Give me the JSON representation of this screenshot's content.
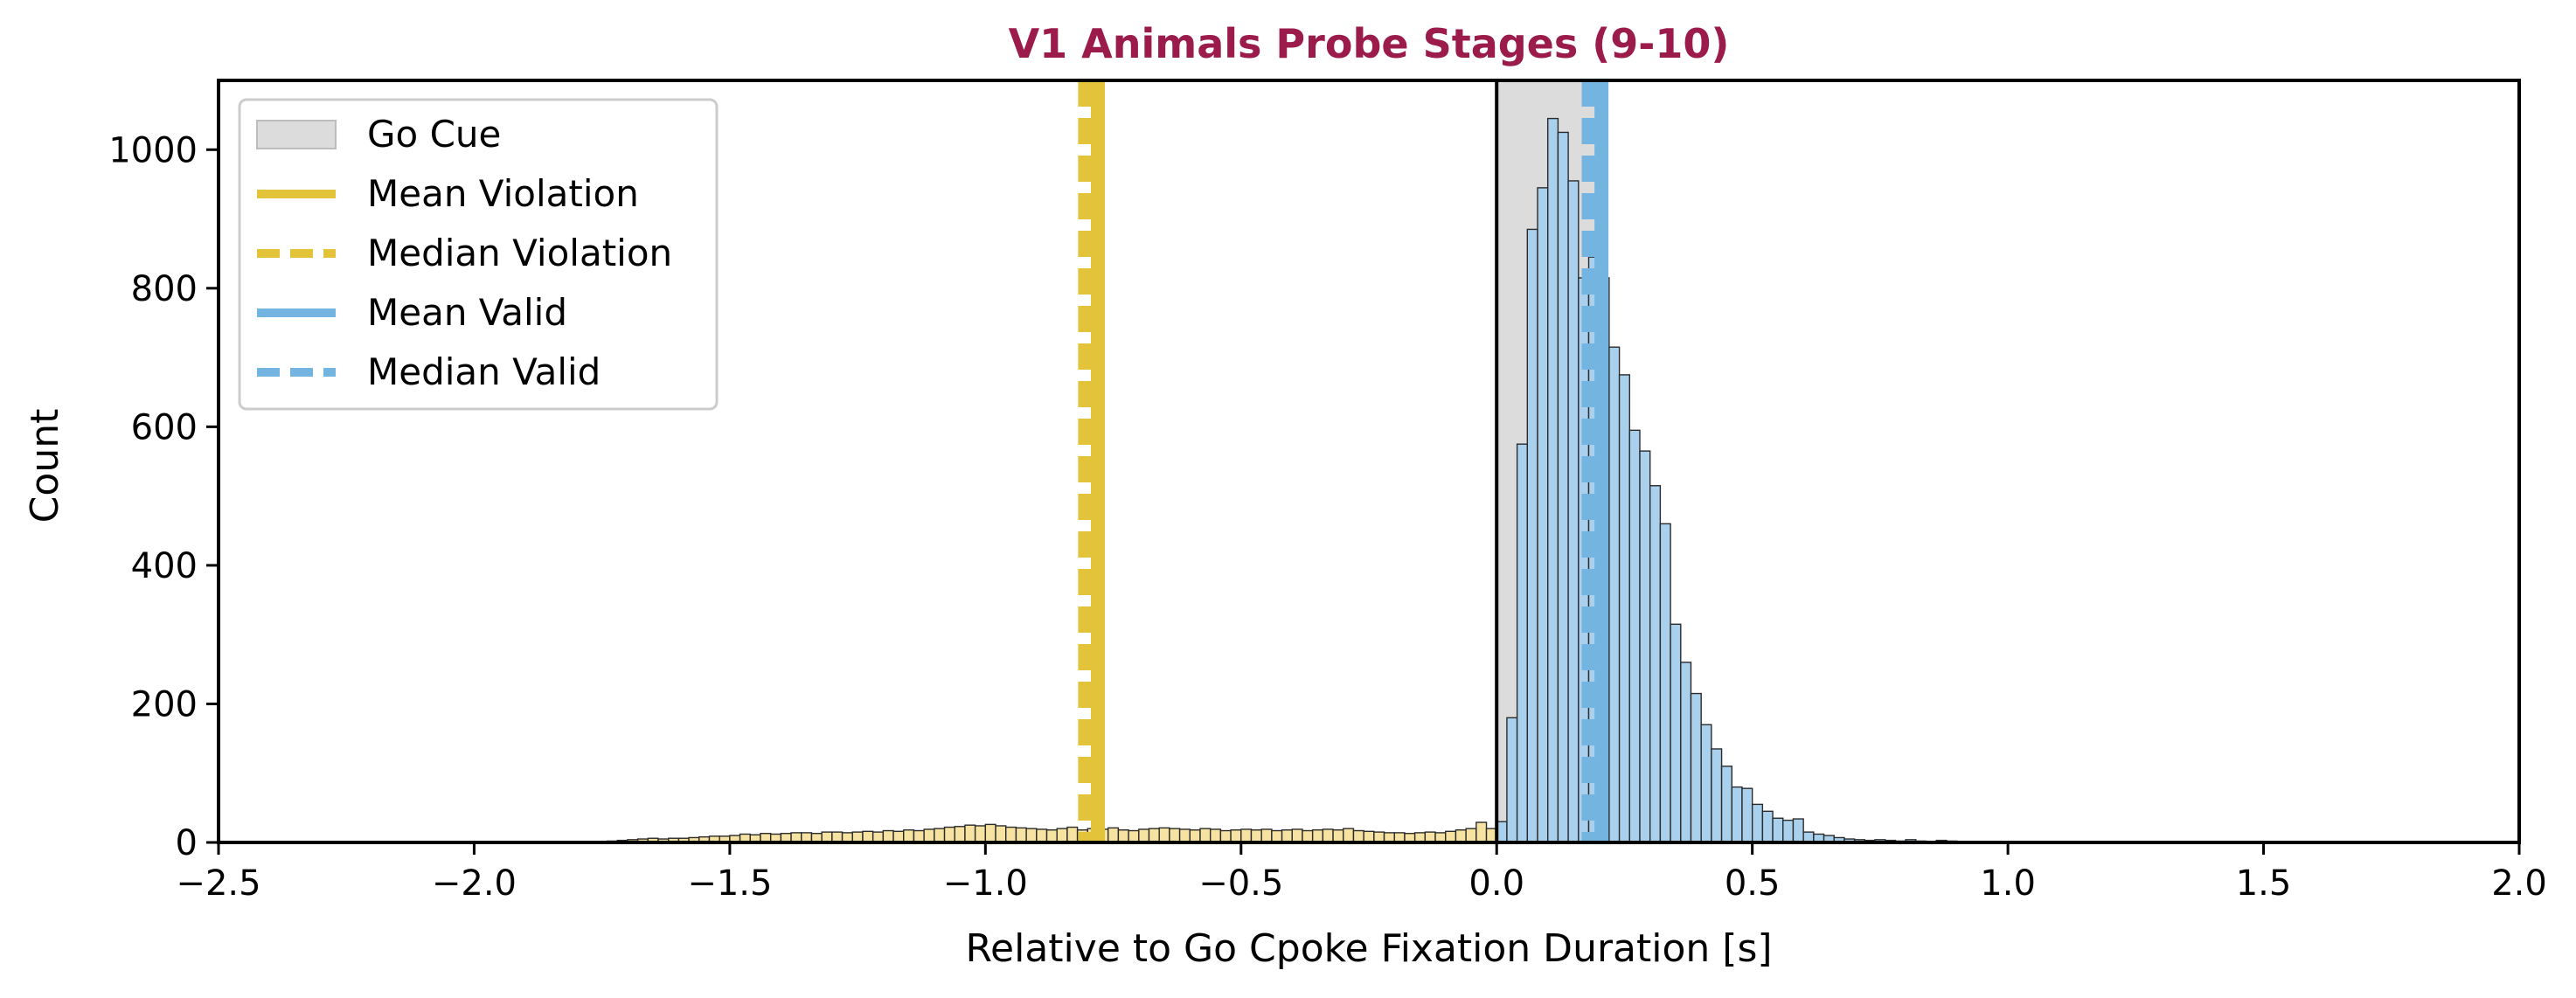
{
  "chart_data": {
    "type": "bar",
    "title": "V1 Animals Probe Stages (9-10)",
    "xlabel": "Relative to Go Cpoke Fixation Duration [s]",
    "ylabel": "Count",
    "xlim": [
      -2.5,
      2.0
    ],
    "ylim": [
      0,
      1100
    ],
    "xticks": [
      -2.5,
      -2.0,
      -1.5,
      -1.0,
      -0.5,
      0.0,
      0.5,
      1.0,
      1.5,
      2.0
    ],
    "xtick_labels": [
      "−2.5",
      "−2.0",
      "−1.5",
      "−1.0",
      "−0.5",
      "0.0",
      "0.5",
      "1.0",
      "1.5",
      "2.0"
    ],
    "yticks": [
      0,
      200,
      400,
      600,
      800,
      1000
    ],
    "ytick_labels": [
      "0",
      "200",
      "400",
      "600",
      "800",
      "1000"
    ],
    "grid": false,
    "legend_position": "top-left",
    "title_color": "#9b1b4b",
    "legend": [
      {
        "label": "Go Cue",
        "kind": "patch",
        "color": "#dcdcdc"
      },
      {
        "label": "Mean Violation",
        "kind": "solid",
        "color": "#e3c33a"
      },
      {
        "label": "Median Violation",
        "kind": "dashed",
        "color": "#e3c33a"
      },
      {
        "label": "Mean Valid",
        "kind": "solid",
        "color": "#74b4e0"
      },
      {
        "label": "Median Valid",
        "kind": "dashed",
        "color": "#74b4e0"
      }
    ],
    "go_cue_region": {
      "x_start": 0.0,
      "x_end": 0.2,
      "color": "#dcdcdc"
    },
    "zero_line": {
      "x": 0.0,
      "color": "#000000"
    },
    "reference_lines": [
      {
        "name": "Mean Violation",
        "x": -0.78,
        "color": "#e3c33a",
        "style": "solid"
      },
      {
        "name": "Median Violation",
        "x": -0.805,
        "color": "#e3c33a",
        "style": "dashed"
      },
      {
        "name": "Mean Valid",
        "x": 0.205,
        "color": "#74b4e0",
        "style": "solid"
      },
      {
        "name": "Median Valid",
        "x": 0.18,
        "color": "#74b4e0",
        "style": "dashed"
      }
    ],
    "bin_width": 0.02,
    "series": [
      {
        "name": "Violation",
        "color": "#f7e3a1",
        "bins": [
          [
            -1.8,
            1
          ],
          [
            -1.78,
            1
          ],
          [
            -1.76,
            1
          ],
          [
            -1.74,
            2
          ],
          [
            -1.72,
            3
          ],
          [
            -1.7,
            4
          ],
          [
            -1.68,
            5
          ],
          [
            -1.66,
            6
          ],
          [
            -1.64,
            5
          ],
          [
            -1.62,
            6
          ],
          [
            -1.6,
            6
          ],
          [
            -1.58,
            7
          ],
          [
            -1.56,
            8
          ],
          [
            -1.54,
            9
          ],
          [
            -1.52,
            9
          ],
          [
            -1.5,
            10
          ],
          [
            -1.48,
            12
          ],
          [
            -1.46,
            11
          ],
          [
            -1.44,
            13
          ],
          [
            -1.42,
            12
          ],
          [
            -1.4,
            13
          ],
          [
            -1.38,
            14
          ],
          [
            -1.36,
            14
          ],
          [
            -1.34,
            13
          ],
          [
            -1.32,
            15
          ],
          [
            -1.3,
            15
          ],
          [
            -1.28,
            14
          ],
          [
            -1.26,
            15
          ],
          [
            -1.24,
            16
          ],
          [
            -1.22,
            15
          ],
          [
            -1.2,
            17
          ],
          [
            -1.18,
            16
          ],
          [
            -1.16,
            18
          ],
          [
            -1.14,
            17
          ],
          [
            -1.12,
            19
          ],
          [
            -1.1,
            20
          ],
          [
            -1.08,
            22
          ],
          [
            -1.06,
            23
          ],
          [
            -1.04,
            25
          ],
          [
            -1.02,
            24
          ],
          [
            -1.0,
            26
          ],
          [
            -0.98,
            24
          ],
          [
            -0.96,
            22
          ],
          [
            -0.94,
            21
          ],
          [
            -0.92,
            20
          ],
          [
            -0.9,
            19
          ],
          [
            -0.88,
            18
          ],
          [
            -0.86,
            20
          ],
          [
            -0.84,
            22
          ],
          [
            -0.82,
            18
          ],
          [
            -0.8,
            20
          ],
          [
            -0.78,
            19
          ],
          [
            -0.76,
            21
          ],
          [
            -0.74,
            18
          ],
          [
            -0.72,
            17
          ],
          [
            -0.7,
            19
          ],
          [
            -0.68,
            20
          ],
          [
            -0.66,
            21
          ],
          [
            -0.64,
            20
          ],
          [
            -0.62,
            19
          ],
          [
            -0.6,
            18
          ],
          [
            -0.58,
            20
          ],
          [
            -0.56,
            19
          ],
          [
            -0.54,
            17
          ],
          [
            -0.52,
            18
          ],
          [
            -0.5,
            19
          ],
          [
            -0.48,
            18
          ],
          [
            -0.46,
            19
          ],
          [
            -0.44,
            17
          ],
          [
            -0.42,
            18
          ],
          [
            -0.4,
            19
          ],
          [
            -0.38,
            17
          ],
          [
            -0.36,
            18
          ],
          [
            -0.34,
            19
          ],
          [
            -0.32,
            18
          ],
          [
            -0.3,
            20
          ],
          [
            -0.28,
            17
          ],
          [
            -0.26,
            16
          ],
          [
            -0.24,
            15
          ],
          [
            -0.22,
            14
          ],
          [
            -0.2,
            14
          ],
          [
            -0.18,
            13
          ],
          [
            -0.16,
            14
          ],
          [
            -0.14,
            15
          ],
          [
            -0.12,
            14
          ],
          [
            -0.1,
            16
          ],
          [
            -0.08,
            18
          ],
          [
            -0.06,
            20
          ],
          [
            -0.04,
            29
          ],
          [
            -0.02,
            20
          ]
        ]
      },
      {
        "name": "Valid",
        "color": "#a9d1ee",
        "bins": [
          [
            0.0,
            30
          ],
          [
            0.02,
            180
          ],
          [
            0.04,
            575
          ],
          [
            0.06,
            885
          ],
          [
            0.08,
            945
          ],
          [
            0.1,
            1045
          ],
          [
            0.12,
            1025
          ],
          [
            0.14,
            955
          ],
          [
            0.16,
            815
          ],
          [
            0.18,
            845
          ],
          [
            0.2,
            815
          ],
          [
            0.22,
            715
          ],
          [
            0.24,
            675
          ],
          [
            0.26,
            595
          ],
          [
            0.28,
            565
          ],
          [
            0.3,
            515
          ],
          [
            0.32,
            460
          ],
          [
            0.34,
            315
          ],
          [
            0.36,
            260
          ],
          [
            0.38,
            215
          ],
          [
            0.4,
            170
          ],
          [
            0.42,
            135
          ],
          [
            0.44,
            110
          ],
          [
            0.46,
            80
          ],
          [
            0.48,
            78
          ],
          [
            0.5,
            55
          ],
          [
            0.52,
            45
          ],
          [
            0.54,
            35
          ],
          [
            0.56,
            32
          ],
          [
            0.58,
            34
          ],
          [
            0.6,
            15
          ],
          [
            0.62,
            12
          ],
          [
            0.64,
            10
          ],
          [
            0.66,
            7
          ],
          [
            0.68,
            5
          ],
          [
            0.7,
            4
          ],
          [
            0.72,
            3
          ],
          [
            0.74,
            4
          ],
          [
            0.76,
            3
          ],
          [
            0.78,
            2
          ],
          [
            0.8,
            4
          ],
          [
            0.82,
            2
          ],
          [
            0.84,
            1
          ],
          [
            0.86,
            3
          ],
          [
            0.88,
            2
          ],
          [
            0.9,
            1
          ],
          [
            0.92,
            1
          ],
          [
            0.96,
            1
          ],
          [
            1.0,
            1
          ],
          [
            1.26,
            1
          ]
        ]
      }
    ]
  }
}
